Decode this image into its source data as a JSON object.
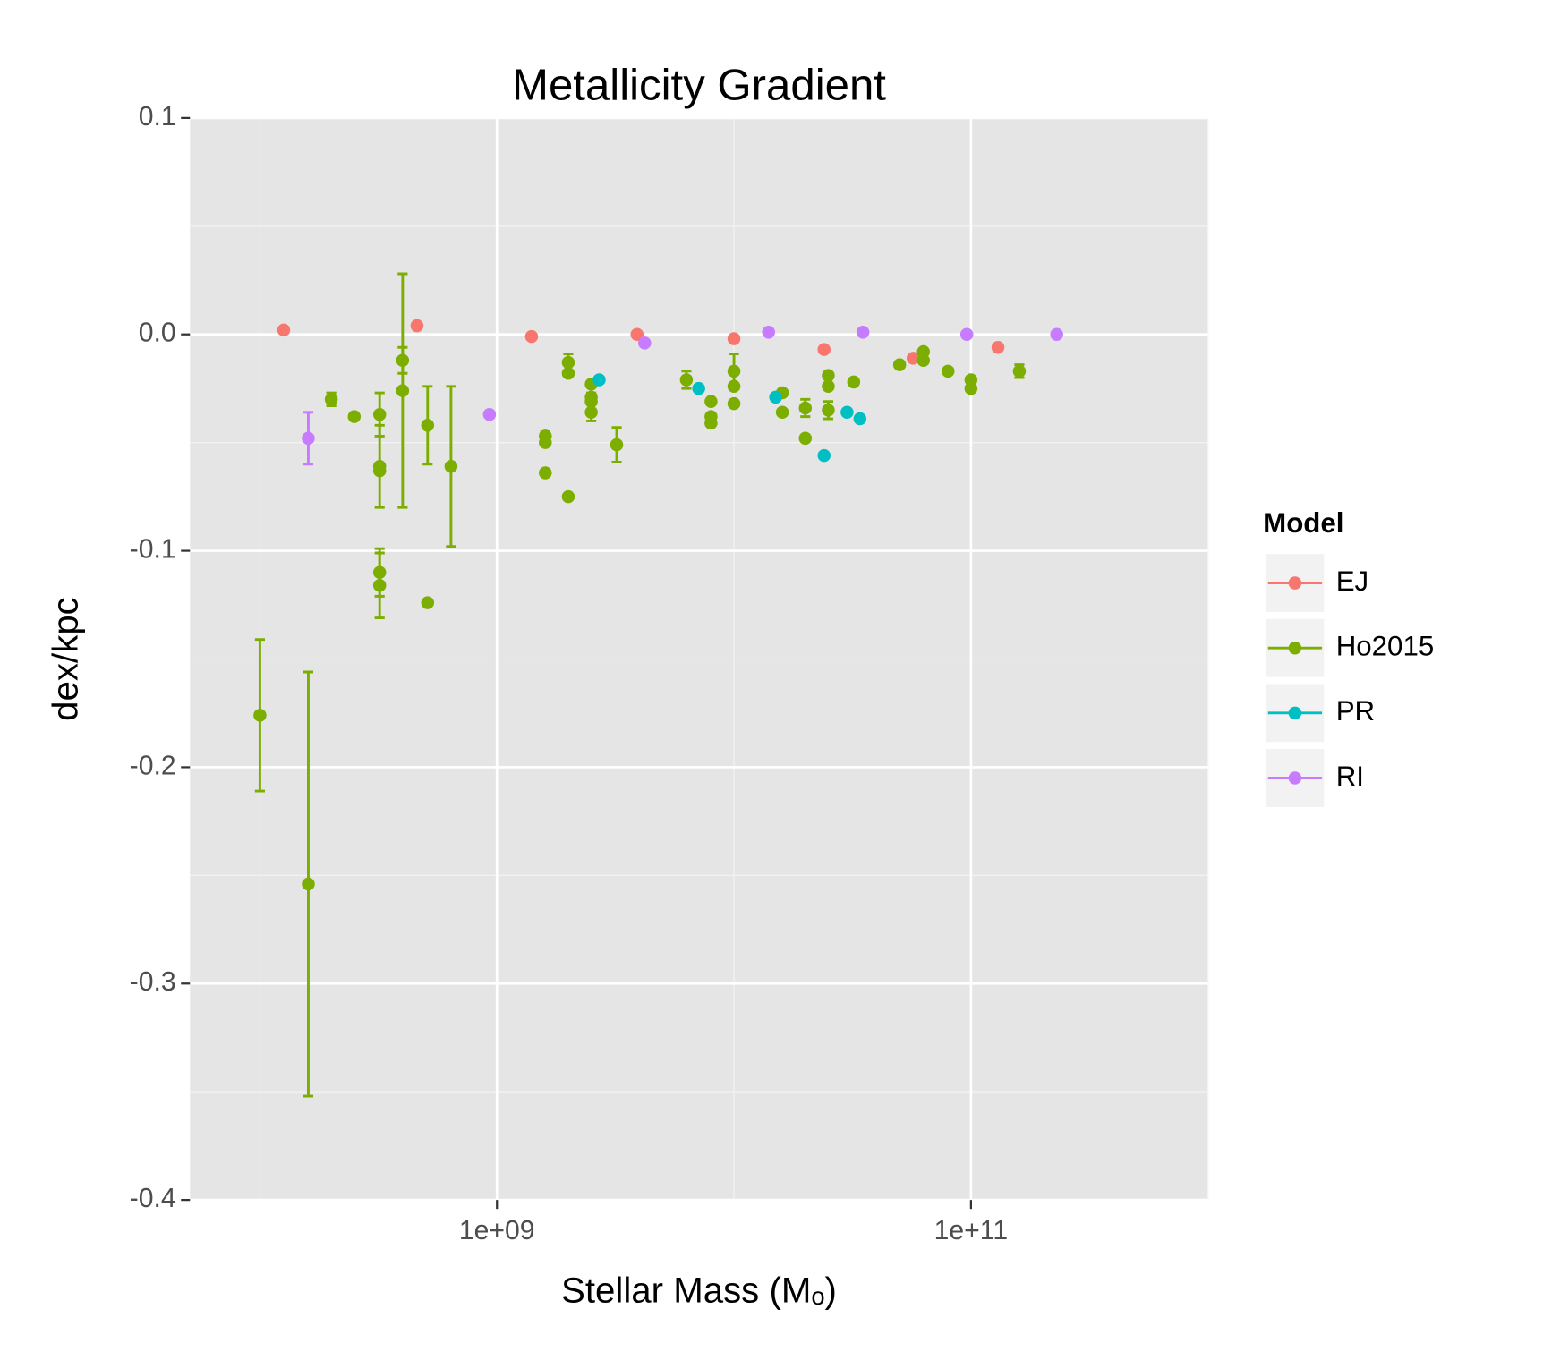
{
  "chart_data": {
    "type": "scatter",
    "title": "Metallicity Gradient",
    "x_label": "Stellar Mass (Mₒ)",
    "y_label": "dex/kpc",
    "x_log": true,
    "xlim": [
      50700000,
      1000000000000
    ],
    "xticks": [
      {
        "value": 1000000000,
        "label": "1e+09"
      },
      {
        "value": 100000000000,
        "label": "1e+11"
      }
    ],
    "x_minor_ticks": [
      100000000,
      10000000000,
      1000000000000
    ],
    "ylim": [
      -0.4,
      0.1
    ],
    "yticks": [
      0.1,
      {
        "value": 0,
        "label": "0.0"
      },
      -0.1,
      -0.2,
      -0.3,
      -0.4
    ],
    "y_minor_ticks": [
      0.05,
      -0.05,
      -0.15,
      -0.25,
      -0.35
    ],
    "grid": true,
    "legend_title": "Model",
    "legend_position": "right",
    "series": [
      {
        "name": "EJ",
        "color": "#f8766d",
        "x": [
          126000000,
          460000000,
          1400000000,
          3900000000,
          10000000000,
          24000000000,
          57000000000,
          130000000000
        ],
        "values": [
          0.002,
          0.004,
          -0.001,
          0.0,
          -0.002,
          -0.007,
          -0.011,
          -0.006
        ],
        "errors": [
          null,
          null,
          null,
          null,
          null,
          null,
          null,
          null
        ]
      },
      {
        "name": "Ho2015",
        "color": "#7cae00",
        "x": [
          100000000,
          160000000,
          200000000,
          250000000,
          320000000,
          320000000,
          320000000,
          320000000,
          320000000,
          400000000,
          400000000,
          510000000,
          510000000,
          640000000,
          1600000000,
          1600000000,
          1600000000,
          2000000000,
          2000000000,
          2000000000,
          2500000000,
          2500000000,
          2500000000,
          2500000000,
          3200000000,
          6300000000,
          8000000000,
          8000000000,
          8000000000,
          10000000000,
          10000000000,
          10000000000,
          16000000000,
          16000000000,
          20000000000,
          20000000000,
          25000000000,
          25000000000,
          25000000000,
          32000000000,
          50000000000,
          63000000000,
          63000000000,
          80000000000,
          100000000000,
          100000000000,
          160000000000
        ],
        "values": [
          -0.176,
          -0.254,
          -0.03,
          -0.038,
          -0.037,
          -0.061,
          -0.063,
          -0.11,
          -0.116,
          -0.012,
          -0.026,
          -0.042,
          -0.124,
          -0.061,
          -0.047,
          -0.05,
          -0.064,
          -0.013,
          -0.018,
          -0.075,
          -0.023,
          -0.029,
          -0.031,
          -0.036,
          -0.051,
          -0.021,
          -0.031,
          -0.038,
          -0.041,
          -0.017,
          -0.024,
          -0.032,
          -0.027,
          -0.036,
          -0.034,
          -0.048,
          -0.019,
          -0.024,
          -0.035,
          -0.022,
          -0.014,
          -0.008,
          -0.012,
          -0.017,
          -0.021,
          -0.025,
          -0.017
        ],
        "errors": [
          0.035,
          0.098,
          0.003,
          null,
          0.01,
          0.019,
          null,
          0.011,
          0.015,
          0.006,
          0.054,
          0.018,
          null,
          0.037,
          0.002,
          null,
          null,
          0.004,
          null,
          null,
          null,
          null,
          0.004,
          0.004,
          0.008,
          0.004,
          null,
          null,
          null,
          0.008,
          null,
          null,
          null,
          null,
          0.004,
          null,
          null,
          null,
          0.004,
          null,
          null,
          null,
          null,
          null,
          null,
          null,
          0.003
        ]
      },
      {
        "name": "PR",
        "color": "#00bfc4",
        "x": [
          2700000000,
          7100000000,
          15000000000,
          24000000000,
          30000000000,
          34000000000
        ],
        "values": [
          -0.021,
          -0.025,
          -0.029,
          -0.056,
          -0.036,
          -0.039
        ],
        "errors": [
          null,
          null,
          null,
          null,
          null,
          null
        ]
      },
      {
        "name": "RI",
        "color": "#c77cff",
        "x": [
          160000000,
          930000000,
          4200000000,
          14000000000,
          35000000000,
          96000000000,
          230000000000
        ],
        "values": [
          -0.048,
          -0.037,
          -0.004,
          0.001,
          0.001,
          0.0,
          0.0
        ],
        "errors": [
          0.012,
          null,
          null,
          null,
          null,
          null,
          null
        ]
      }
    ]
  }
}
